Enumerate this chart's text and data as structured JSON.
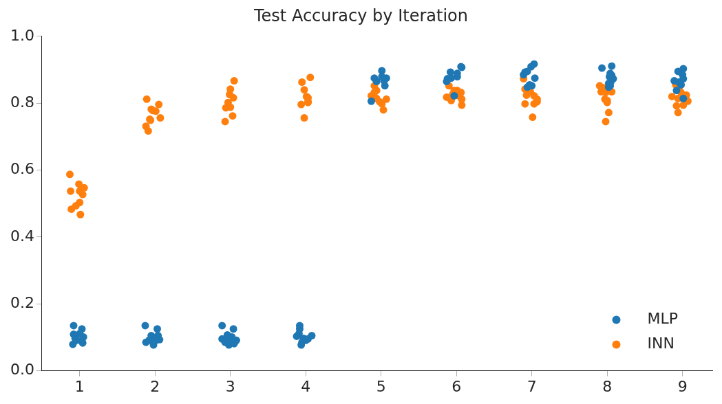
{
  "chart_data": {
    "type": "scatter",
    "title": "Test Accuracy by Iteration",
    "xlim": [
      0.5,
      9.4
    ],
    "xticks": [
      1,
      2,
      3,
      4,
      5,
      6,
      7,
      8,
      9
    ],
    "ylim": [
      0,
      1
    ],
    "yticks": [
      {
        "value": 0,
        "label": "0.0"
      },
      {
        "value": 0.2,
        "label": "0.2"
      },
      {
        "value": 0.4,
        "label": "0.4"
      },
      {
        "value": 0.6,
        "label": "0.6"
      },
      {
        "value": 0.8,
        "label": "0.8"
      },
      {
        "value": 1,
        "label": "1.0"
      }
    ],
    "grid": false,
    "legend": "bottom right",
    "marker": "circle",
    "series": [
      {
        "name": "MLP",
        "color": "#1f77b4",
        "x": [
          0.92,
          1.03,
          0.92,
          1.0,
          1.05,
          0.94,
          0.91,
          1.04,
          0.96,
          1.03,
          1.87,
          2.03,
          2.04,
          1.88,
          1.98,
          1.95,
          2.06,
          1.92,
          2.01,
          2.89,
          3.04,
          2.96,
          2.89,
          3.08,
          2.98,
          3.02,
          2.93,
          3.05,
          2.99,
          3.92,
          3.92,
          3.91,
          4.08,
          3.88,
          3.97,
          4.03,
          3.95,
          3.94,
          4.0,
          5.01,
          4.91,
          5.07,
          5.05,
          4.94,
          4.87,
          5.01,
          5.04,
          6.07,
          6.06,
          5.92,
          5.88,
          5.87,
          6.01,
          5.97,
          6.01,
          5.93,
          7.03,
          6.99,
          6.91,
          6.89,
          7.04,
          6.94,
          6.97,
          7.0,
          6.94,
          7.93,
          8.06,
          8.04,
          8.03,
          8.08,
          8.04,
          8.02,
          8.05,
          8.06,
          8.02,
          9.01,
          8.94,
          9.0,
          9.01,
          8.89,
          8.98,
          8.92,
          9.01,
          8.95
        ],
        "values": [
          0.135,
          0.125,
          0.109,
          0.111,
          0.101,
          0.097,
          0.079,
          0.083,
          0.091,
          0.091,
          0.135,
          0.125,
          0.105,
          0.085,
          0.077,
          0.105,
          0.093,
          0.091,
          0.091,
          0.135,
          0.125,
          0.107,
          0.095,
          0.091,
          0.077,
          0.101,
          0.085,
          0.081,
          0.095,
          0.135,
          0.125,
          0.111,
          0.105,
          0.103,
          0.097,
          0.095,
          0.085,
          0.077,
          0.091,
          0.897,
          0.875,
          0.875,
          0.852,
          0.865,
          0.806,
          0.879,
          0.867,
          0.907,
          0.909,
          0.893,
          0.873,
          0.865,
          0.879,
          0.822,
          0.889,
          0.875,
          0.917,
          0.909,
          0.893,
          0.885,
          0.875,
          0.895,
          0.855,
          0.852,
          0.848,
          0.905,
          0.911,
          0.889,
          0.879,
          0.873,
          0.852,
          0.848,
          0.865,
          0.883,
          0.859,
          0.903,
          0.895,
          0.885,
          0.873,
          0.867,
          0.855,
          0.838,
          0.814,
          0.863
        ]
      },
      {
        "name": "INN",
        "color": "#ff7f0e",
        "x": [
          0.87,
          0.99,
          1.06,
          0.88,
          1.0,
          1.04,
          1.0,
          0.95,
          0.89,
          1.01,
          1.89,
          2.05,
          1.95,
          2.01,
          1.93,
          2.07,
          1.88,
          1.91,
          1.97,
          1.94,
          3.05,
          3.0,
          2.99,
          3.04,
          2.97,
          2.94,
          3.0,
          3.03,
          2.93,
          4.06,
          3.95,
          3.98,
          4.03,
          4.03,
          3.94,
          3.98,
          4.01,
          4.03,
          4.91,
          4.94,
          4.87,
          4.94,
          5.07,
          5.01,
          5.03,
          4.91,
          4.98,
          5.9,
          5.97,
          6.06,
          5.87,
          5.93,
          6.07,
          6.07,
          6.01,
          6.03,
          5.95,
          6.89,
          6.91,
          7.03,
          7.07,
          6.93,
          6.91,
          7.03,
          7.01,
          7.07,
          6.98,
          7.9,
          7.92,
          8.06,
          7.97,
          8.0,
          8.02,
          7.98,
          7.95,
          7.98,
          8.0,
          8.91,
          8.95,
          9.05,
          8.86,
          9.07,
          8.94,
          8.92,
          9.01,
          8.94,
          8.98
        ],
        "values": [
          0.587,
          0.558,
          0.547,
          0.537,
          0.537,
          0.527,
          0.503,
          0.493,
          0.483,
          0.467,
          0.812,
          0.796,
          0.782,
          0.776,
          0.752,
          0.756,
          0.731,
          0.717,
          0.778,
          0.749,
          0.867,
          0.842,
          0.826,
          0.816,
          0.802,
          0.786,
          0.788,
          0.762,
          0.745,
          0.877,
          0.863,
          0.84,
          0.816,
          0.802,
          0.796,
          0.756,
          0.82,
          0.805,
          0.852,
          0.838,
          0.822,
          0.814,
          0.812,
          0.798,
          0.78,
          0.832,
          0.804,
          0.852,
          0.838,
          0.832,
          0.818,
          0.808,
          0.812,
          0.794,
          0.838,
          0.822,
          0.826,
          0.873,
          0.842,
          0.822,
          0.812,
          0.824,
          0.798,
          0.798,
          0.758,
          0.804,
          0.834,
          0.852,
          0.834,
          0.834,
          0.812,
          0.802,
          0.772,
          0.745,
          0.846,
          0.832,
          0.808,
          0.855,
          0.844,
          0.824,
          0.82,
          0.806,
          0.814,
          0.792,
          0.794,
          0.772,
          0.832
        ]
      }
    ]
  }
}
